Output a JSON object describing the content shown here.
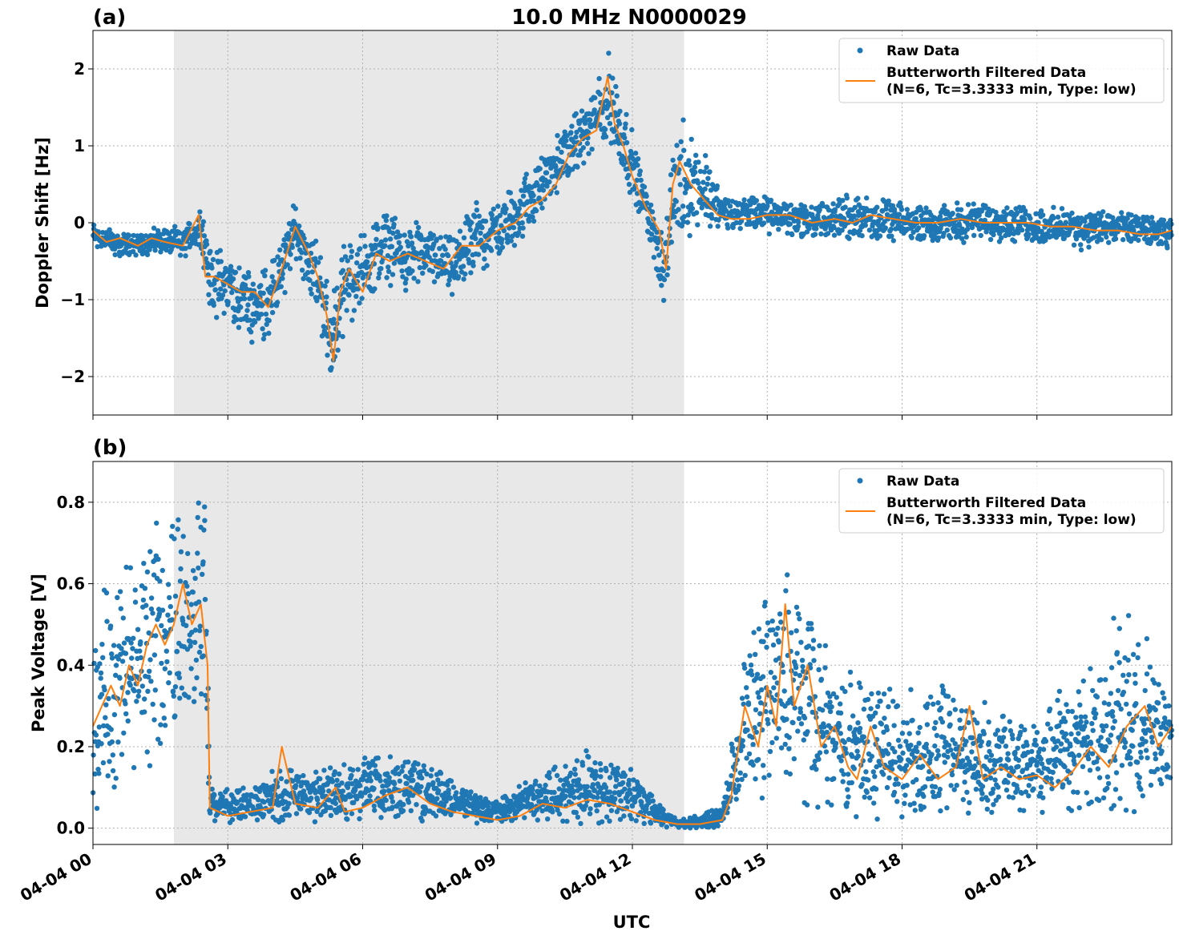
{
  "title": "10.0 MHz N0000029",
  "xlabel": "UTC",
  "x_tick_labels": [
    "04-04 00",
    "04-04 03",
    "04-04 06",
    "04-04 09",
    "04-04 12",
    "04-04 15",
    "04-04 18",
    "04-04 21"
  ],
  "legend": {
    "raw_label": "Raw Data",
    "filtered_label_line1": "Butterworth Filtered Data",
    "filtered_label_line2": "(N=6, Tc=3.3333 min, Type: low)"
  },
  "colors": {
    "raw": "#1f77b4",
    "filtered": "#ff7f0e",
    "shade": "#e8e8e8"
  },
  "chart_data": [
    {
      "type": "scatter",
      "panel_label": "(a)",
      "ylabel": "Doppler Shift [Hz]",
      "xlim": [
        0,
        24
      ],
      "ylim": [
        -2.5,
        2.5
      ],
      "yticks": [
        -2,
        -1,
        0,
        1,
        2
      ],
      "ytick_labels": [
        "−2",
        "−1",
        "0",
        "1",
        "2"
      ],
      "grid": true,
      "legend_position": "top-right",
      "shaded_region_hours": [
        1.8,
        13.15
      ],
      "series": [
        {
          "name": "Raw Data",
          "style": "markers",
          "envelope": [
            {
              "x": 0.0,
              "lo": -0.35,
              "hi": 0.05
            },
            {
              "x": 0.5,
              "lo": -0.45,
              "hi": -0.1
            },
            {
              "x": 1.0,
              "lo": -0.45,
              "hi": -0.1
            },
            {
              "x": 1.5,
              "lo": -0.4,
              "hi": -0.05
            },
            {
              "x": 2.0,
              "lo": -0.5,
              "hi": -0.05
            },
            {
              "x": 2.4,
              "lo": -0.3,
              "hi": 0.25
            },
            {
              "x": 2.6,
              "lo": -1.2,
              "hi": -0.3
            },
            {
              "x": 3.0,
              "lo": -1.3,
              "hi": -0.3
            },
            {
              "x": 3.5,
              "lo": -1.6,
              "hi": -0.6
            },
            {
              "x": 4.0,
              "lo": -1.5,
              "hi": -0.4
            },
            {
              "x": 4.5,
              "lo": -0.5,
              "hi": 0.3
            },
            {
              "x": 5.0,
              "lo": -1.2,
              "hi": -0.2
            },
            {
              "x": 5.3,
              "lo": -2.2,
              "hi": -0.9
            },
            {
              "x": 5.6,
              "lo": -1.4,
              "hi": -0.2
            },
            {
              "x": 6.0,
              "lo": -1.1,
              "hi": -0.1
            },
            {
              "x": 6.5,
              "lo": -0.8,
              "hi": 0.2
            },
            {
              "x": 7.0,
              "lo": -0.9,
              "hi": 0.0
            },
            {
              "x": 7.5,
              "lo": -0.8,
              "hi": 0.0
            },
            {
              "x": 8.0,
              "lo": -1.0,
              "hi": -0.2
            },
            {
              "x": 8.5,
              "lo": -0.7,
              "hi": 0.3
            },
            {
              "x": 9.0,
              "lo": -0.5,
              "hi": 0.3
            },
            {
              "x": 9.5,
              "lo": -0.3,
              "hi": 0.6
            },
            {
              "x": 10.0,
              "lo": 0.1,
              "hi": 0.9
            },
            {
              "x": 10.5,
              "lo": 0.5,
              "hi": 1.3
            },
            {
              "x": 11.0,
              "lo": 0.8,
              "hi": 1.6
            },
            {
              "x": 11.5,
              "lo": 0.9,
              "hi": 2.3
            },
            {
              "x": 12.0,
              "lo": 0.3,
              "hi": 1.2
            },
            {
              "x": 12.4,
              "lo": -0.3,
              "hi": 0.3
            },
            {
              "x": 12.7,
              "lo": -1.1,
              "hi": -0.1
            },
            {
              "x": 13.0,
              "lo": -0.5,
              "hi": 1.6
            },
            {
              "x": 13.5,
              "lo": -0.1,
              "hi": 1.1
            },
            {
              "x": 14.0,
              "lo": -0.1,
              "hi": 0.4
            },
            {
              "x": 15.0,
              "lo": -0.15,
              "hi": 0.35
            },
            {
              "x": 16.0,
              "lo": -0.25,
              "hi": 0.3
            },
            {
              "x": 17.0,
              "lo": -0.25,
              "hi": 0.4
            },
            {
              "x": 18.0,
              "lo": -0.25,
              "hi": 0.25
            },
            {
              "x": 19.0,
              "lo": -0.25,
              "hi": 0.25
            },
            {
              "x": 20.0,
              "lo": -0.25,
              "hi": 0.3
            },
            {
              "x": 21.0,
              "lo": -0.3,
              "hi": 0.2
            },
            {
              "x": 22.0,
              "lo": -0.35,
              "hi": 0.2
            },
            {
              "x": 23.0,
              "lo": -0.3,
              "hi": 0.15
            },
            {
              "x": 24.0,
              "lo": -0.35,
              "hi": 0.05
            }
          ]
        },
        {
          "name": "Butterworth Filtered Data\n(N=6, Tc=3.3333 min, Type: low)",
          "style": "line",
          "x": [
            0.0,
            0.3,
            0.6,
            1.0,
            1.3,
            1.6,
            2.0,
            2.35,
            2.5,
            2.7,
            3.0,
            3.3,
            3.6,
            3.9,
            4.2,
            4.5,
            4.8,
            5.0,
            5.2,
            5.35,
            5.5,
            5.7,
            6.0,
            6.3,
            6.6,
            7.0,
            7.4,
            7.8,
            8.2,
            8.6,
            9.0,
            9.4,
            9.7,
            10.0,
            10.3,
            10.6,
            10.9,
            11.2,
            11.45,
            11.6,
            11.8,
            12.0,
            12.3,
            12.6,
            12.75,
            12.9,
            13.05,
            13.3,
            13.6,
            13.9,
            14.2,
            14.6,
            15.0,
            15.5,
            16.0,
            16.5,
            16.9,
            17.3,
            17.8,
            18.3,
            18.8,
            19.3,
            19.8,
            20.3,
            20.8,
            21.3,
            21.8,
            22.3,
            22.8,
            23.3,
            23.7,
            24.0
          ],
          "y": [
            -0.1,
            -0.25,
            -0.2,
            -0.3,
            -0.2,
            -0.25,
            -0.3,
            0.1,
            -0.7,
            -0.7,
            -0.8,
            -0.9,
            -0.9,
            -1.1,
            -0.6,
            -0.05,
            -0.4,
            -0.7,
            -1.2,
            -1.8,
            -0.9,
            -0.6,
            -0.9,
            -0.4,
            -0.5,
            -0.4,
            -0.5,
            -0.6,
            -0.3,
            -0.3,
            -0.1,
            0.0,
            0.2,
            0.3,
            0.5,
            0.9,
            1.1,
            1.2,
            1.9,
            1.3,
            1.0,
            0.6,
            0.2,
            -0.1,
            -0.6,
            0.5,
            0.8,
            0.5,
            0.3,
            0.1,
            0.05,
            0.05,
            0.1,
            0.1,
            0.0,
            0.05,
            0.0,
            0.1,
            0.05,
            0.0,
            0.0,
            0.05,
            0.0,
            0.0,
            0.0,
            -0.05,
            -0.05,
            -0.1,
            -0.1,
            -0.15,
            -0.15,
            -0.1
          ]
        }
      ]
    },
    {
      "type": "scatter",
      "panel_label": "(b)",
      "ylabel": "Peak Voltage [V]",
      "xlim": [
        0,
        24
      ],
      "ylim": [
        -0.04,
        0.9
      ],
      "yticks": [
        0.0,
        0.2,
        0.4,
        0.6,
        0.8
      ],
      "ytick_labels": [
        "0.0",
        "0.2",
        "0.4",
        "0.6",
        "0.8"
      ],
      "grid": true,
      "legend_position": "top-right",
      "shaded_region_hours": [
        1.8,
        13.15
      ],
      "series": [
        {
          "name": "Raw Data",
          "style": "markers",
          "envelope": [
            {
              "x": 0.0,
              "lo": 0.05,
              "hi": 0.55
            },
            {
              "x": 0.5,
              "lo": 0.05,
              "hi": 0.65
            },
            {
              "x": 1.0,
              "lo": 0.12,
              "hi": 0.7
            },
            {
              "x": 1.5,
              "lo": 0.18,
              "hi": 0.75
            },
            {
              "x": 2.0,
              "lo": 0.2,
              "hi": 0.85
            },
            {
              "x": 2.5,
              "lo": 0.25,
              "hi": 0.85
            },
            {
              "x": 2.6,
              "lo": 0.01,
              "hi": 0.1
            },
            {
              "x": 3.5,
              "lo": 0.01,
              "hi": 0.1
            },
            {
              "x": 4.0,
              "lo": 0.01,
              "hi": 0.15
            },
            {
              "x": 5.0,
              "lo": 0.01,
              "hi": 0.15
            },
            {
              "x": 6.0,
              "lo": 0.01,
              "hi": 0.18
            },
            {
              "x": 7.0,
              "lo": 0.01,
              "hi": 0.2
            },
            {
              "x": 8.0,
              "lo": 0.01,
              "hi": 0.12
            },
            {
              "x": 9.0,
              "lo": 0.01,
              "hi": 0.07
            },
            {
              "x": 10.0,
              "lo": 0.01,
              "hi": 0.15
            },
            {
              "x": 11.0,
              "lo": 0.01,
              "hi": 0.2
            },
            {
              "x": 12.0,
              "lo": 0.01,
              "hi": 0.15
            },
            {
              "x": 13.0,
              "lo": 0.0,
              "hi": 0.02
            },
            {
              "x": 14.0,
              "lo": 0.0,
              "hi": 0.05
            },
            {
              "x": 14.5,
              "lo": 0.05,
              "hi": 0.45
            },
            {
              "x": 15.0,
              "lo": 0.08,
              "hi": 0.6
            },
            {
              "x": 15.5,
              "lo": 0.05,
              "hi": 0.65
            },
            {
              "x": 16.0,
              "lo": 0.05,
              "hi": 0.55
            },
            {
              "x": 16.5,
              "lo": 0.02,
              "hi": 0.4
            },
            {
              "x": 17.0,
              "lo": 0.02,
              "hi": 0.4
            },
            {
              "x": 18.0,
              "lo": 0.02,
              "hi": 0.35
            },
            {
              "x": 19.0,
              "lo": 0.02,
              "hi": 0.35
            },
            {
              "x": 20.0,
              "lo": 0.02,
              "hi": 0.3
            },
            {
              "x": 21.0,
              "lo": 0.02,
              "hi": 0.3
            },
            {
              "x": 22.0,
              "lo": 0.02,
              "hi": 0.4
            },
            {
              "x": 23.0,
              "lo": 0.02,
              "hi": 0.55
            },
            {
              "x": 24.0,
              "lo": 0.05,
              "hi": 0.35
            }
          ]
        },
        {
          "name": "Butterworth Filtered Data\n(N=6, Tc=3.3333 min, Type: low)",
          "style": "line",
          "x": [
            0.0,
            0.2,
            0.4,
            0.6,
            0.8,
            1.0,
            1.2,
            1.4,
            1.6,
            1.8,
            2.0,
            2.2,
            2.4,
            2.55,
            2.6,
            3.0,
            3.5,
            4.0,
            4.2,
            4.5,
            5.0,
            5.4,
            5.6,
            6.0,
            6.5,
            7.0,
            7.5,
            8.0,
            8.5,
            9.0,
            9.5,
            10.0,
            10.5,
            11.0,
            11.5,
            12.0,
            12.5,
            13.0,
            13.5,
            14.0,
            14.2,
            14.5,
            14.8,
            15.0,
            15.2,
            15.4,
            15.6,
            15.9,
            16.2,
            16.5,
            16.8,
            17.0,
            17.3,
            17.6,
            18.0,
            18.4,
            18.8,
            19.2,
            19.5,
            19.8,
            20.2,
            20.6,
            21.0,
            21.4,
            21.8,
            22.2,
            22.6,
            23.0,
            23.4,
            23.7,
            24.0
          ],
          "y": [
            0.25,
            0.3,
            0.35,
            0.3,
            0.4,
            0.35,
            0.45,
            0.5,
            0.45,
            0.5,
            0.6,
            0.5,
            0.55,
            0.4,
            0.05,
            0.03,
            0.04,
            0.05,
            0.2,
            0.06,
            0.05,
            0.1,
            0.04,
            0.05,
            0.08,
            0.1,
            0.06,
            0.04,
            0.03,
            0.02,
            0.03,
            0.06,
            0.05,
            0.07,
            0.06,
            0.04,
            0.02,
            0.01,
            0.01,
            0.02,
            0.08,
            0.3,
            0.2,
            0.35,
            0.25,
            0.55,
            0.3,
            0.4,
            0.2,
            0.25,
            0.15,
            0.12,
            0.25,
            0.15,
            0.12,
            0.18,
            0.12,
            0.15,
            0.3,
            0.12,
            0.15,
            0.12,
            0.13,
            0.1,
            0.14,
            0.2,
            0.15,
            0.25,
            0.3,
            0.2,
            0.25
          ]
        }
      ]
    }
  ]
}
